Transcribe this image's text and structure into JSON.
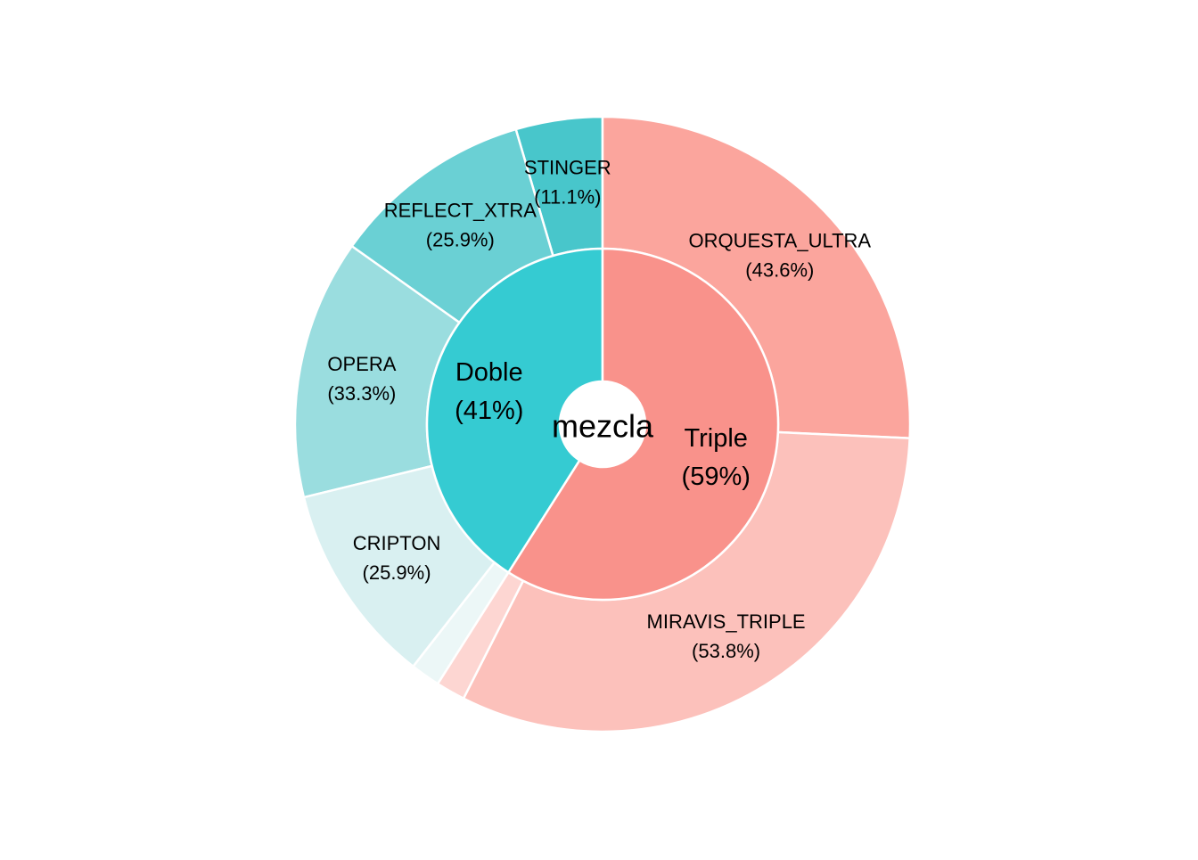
{
  "chart_data": {
    "type": "pie",
    "variant": "sunburst",
    "center_label": "mezcla",
    "inner": [
      {
        "name": "Doble",
        "percent_label": "(41%)",
        "value": 41,
        "color": "#35cbd2"
      },
      {
        "name": "Triple",
        "percent_label": "(59%)",
        "value": 59,
        "color": "#f9928b"
      }
    ],
    "outer": [
      {
        "parent": "Doble",
        "name": "STINGER",
        "percent_label": "(11.1%)",
        "value": 11.1,
        "color": "#48c6cb"
      },
      {
        "parent": "Doble",
        "name": "REFLECT_XTRA",
        "percent_label": "(25.9%)",
        "value": 25.9,
        "color": "#6ad0d4"
      },
      {
        "parent": "Doble",
        "name": "OPERA",
        "percent_label": "(33.3%)",
        "value": 33.3,
        "color": "#9adddf"
      },
      {
        "parent": "Doble",
        "name": "CRIPTON",
        "percent_label": "(25.9%)",
        "value": 25.9,
        "color": "#d9f0f1"
      },
      {
        "parent": "Doble",
        "name": "",
        "percent_label": "",
        "value": 3.8,
        "color": "#ecf7f7"
      },
      {
        "parent": "Triple",
        "name": "ORQUESTA_ULTRA",
        "percent_label": "(43.6%)",
        "value": 43.6,
        "color": "#fba59d"
      },
      {
        "parent": "Triple",
        "name": "MIRAVIS_TRIPLE",
        "percent_label": "(53.8%)",
        "value": 53.8,
        "color": "#fcc1bb"
      },
      {
        "parent": "Triple",
        "name": "",
        "percent_label": "",
        "value": 2.6,
        "color": "#fdd6d2"
      }
    ]
  }
}
